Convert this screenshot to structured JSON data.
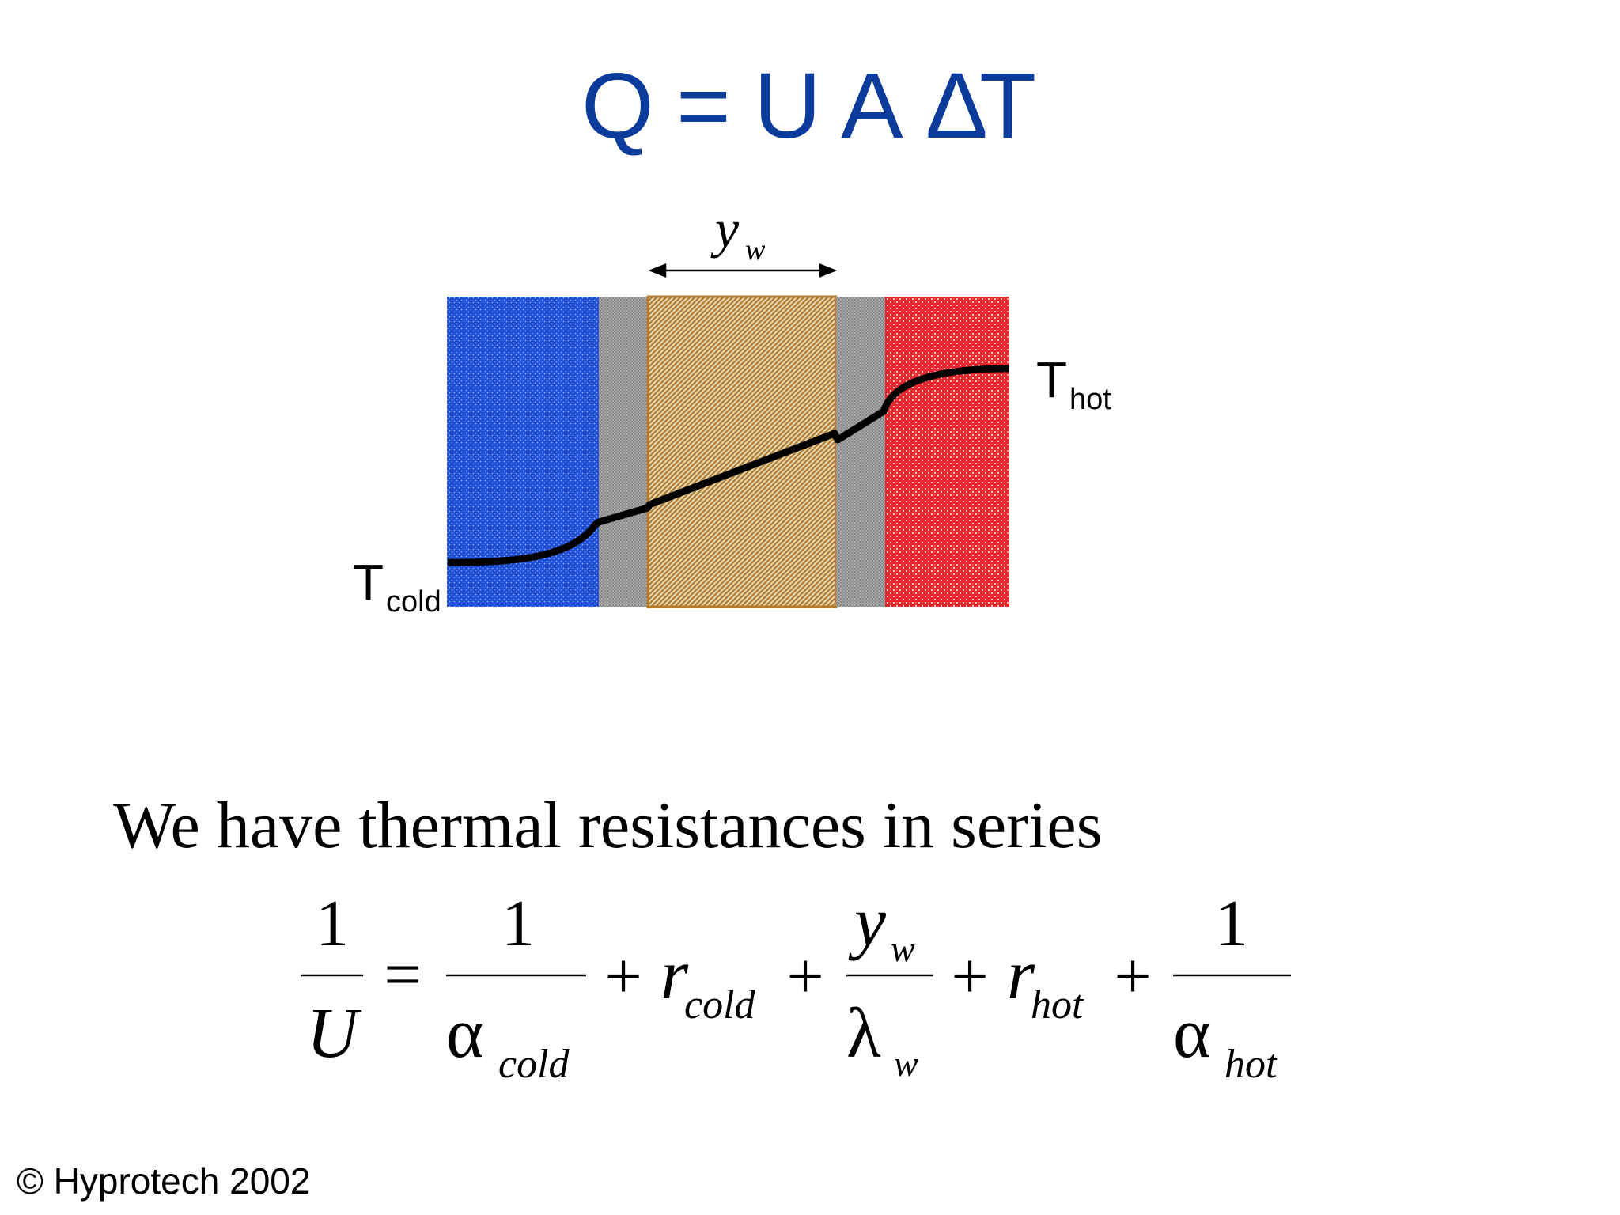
{
  "title": {
    "Q": "Q",
    "eq": "=",
    "U": "U",
    "A": "A",
    "delta": "Δ",
    "T": "T"
  },
  "diagram": {
    "thickness_label": {
      "symbol": "y",
      "subscript": "w"
    },
    "t_cold": {
      "symbol": "T",
      "subscript": "cold"
    },
    "t_hot": {
      "symbol": "T",
      "subscript": "hot"
    },
    "colors": {
      "cold_fluid": "#1f4fd6",
      "fouling": "#8f8f8f",
      "wall": "#c7a36a",
      "wall_border": "#b57b2a",
      "hot_fluid": "#e8262b",
      "profile_line": "#000000"
    }
  },
  "statement": "We have thermal resistances in series",
  "equation": {
    "lhs_num": "1",
    "lhs_den": "U",
    "equals": "=",
    "t1_num": "1",
    "alpha": "α",
    "t1_sub": "cold",
    "plus": "+",
    "r": "r",
    "t2_sub": "cold",
    "t3_num_symbol": "y",
    "t3_num_sub": "w",
    "lambda": "λ",
    "t3_den_sub": "w",
    "t4_sub": "hot",
    "t5_num": "1",
    "t5_sub": "hot"
  },
  "footer": "© Hyprotech 2002"
}
